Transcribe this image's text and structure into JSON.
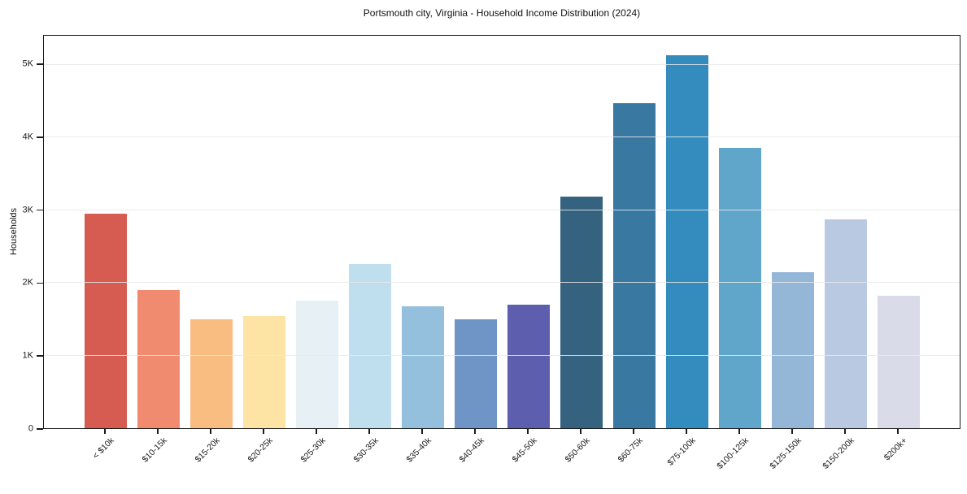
{
  "figure": {
    "title": "Portsmouth city, Virginia - Household Income Distribution (2024)"
  },
  "y_axis": {
    "label": "Households",
    "ticks": [
      {
        "label": "0",
        "value": 0
      },
      {
        "label": "1K",
        "value": 1000
      },
      {
        "label": "2K",
        "value": 2000
      },
      {
        "label": "3K",
        "value": 3000
      },
      {
        "label": "4K",
        "value": 4000
      },
      {
        "label": "5K",
        "value": 5000
      }
    ]
  },
  "chart_data": {
    "type": "bar",
    "title": "Portsmouth city, Virginia - Household Income Distribution (2024)",
    "xlabel": "",
    "ylabel": "Households",
    "ylim": [
      0,
      5400
    ],
    "grid": "horizontal",
    "legend": "none",
    "categories": [
      "< $10k",
      "$10-15k",
      "$15-20k",
      "$20-25k",
      "$25-30k",
      "$30-35k",
      "$35-40k",
      "$40-45k",
      "$45-50k",
      "$50-60k",
      "$60-75k",
      "$75-100k",
      "$100-125k",
      "$125-150k",
      "$150-200k",
      "$200k+"
    ],
    "values": [
      2950,
      1900,
      1500,
      1540,
      1750,
      2260,
      1680,
      1500,
      1700,
      3190,
      4470,
      5130,
      3860,
      2150,
      2870,
      1820
    ],
    "bar_colors": [
      "#d65c52",
      "#f18b6f",
      "#fabd81",
      "#fde4a5",
      "#e7f1f5",
      "#bfdfee",
      "#94bfdd",
      "#6e95c6",
      "#5d5fae",
      "#35627f",
      "#3978a1",
      "#348cbe",
      "#60a6cb",
      "#95b7d7",
      "#b9c9e1",
      "#d9dbe8"
    ]
  },
  "colors": {
    "background": "#ffffff",
    "grid": "#ebebeb",
    "spine": "#1b1b1b",
    "text": "#1a1a1a"
  }
}
